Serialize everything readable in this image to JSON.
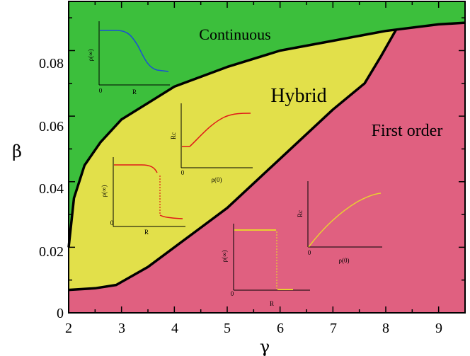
{
  "chart_data": {
    "type": "area",
    "title": "",
    "xlabel": "γ",
    "ylabel": "β",
    "xlim": [
      2,
      9.5
    ],
    "ylim": [
      0,
      0.095
    ],
    "x_ticks": [
      2,
      3,
      4,
      5,
      6,
      7,
      8,
      9
    ],
    "x_tick_labels": [
      "2",
      "3",
      "4",
      "5",
      "6",
      "7",
      "8",
      "9"
    ],
    "y_ticks": [
      0,
      0.02,
      0.04,
      0.06,
      0.08
    ],
    "y_tick_labels": [
      "0",
      "0.02",
      "0.04",
      "0.06",
      "0.08"
    ],
    "grid": false,
    "colors": {
      "continuous": "#3cbf3c",
      "hybrid": "#e2e04a",
      "first_order": "#e06080",
      "boundary": "#000000",
      "inset_blue": "#1a4fd6",
      "inset_red": "#e01818",
      "inset_yellow": "#e8d030"
    },
    "regions": [
      {
        "name": "Continuous",
        "label": "Continuous"
      },
      {
        "name": "Hybrid",
        "label": "Hybrid"
      },
      {
        "name": "First order",
        "label": "First order"
      }
    ],
    "upper_boundary": {
      "x": [
        2.0,
        2.1,
        2.3,
        2.6,
        3.0,
        3.5,
        4.0,
        5.0,
        6.0,
        7.0,
        8.0,
        9.0,
        9.5
      ],
      "y": [
        0.02,
        0.035,
        0.045,
        0.052,
        0.059,
        0.064,
        0.069,
        0.075,
        0.08,
        0.083,
        0.086,
        0.088,
        0.0885
      ]
    },
    "lower_boundary": {
      "x": [
        2.0,
        2.5,
        2.9,
        3.5,
        4.5,
        5.0,
        6.0,
        7.0,
        7.6,
        7.9,
        8.2
      ],
      "y": [
        0.007,
        0.0075,
        0.0085,
        0.014,
        0.026,
        0.032,
        0.047,
        0.062,
        0.07,
        0.078,
        0.0865
      ]
    },
    "insets": [
      {
        "name": "continuous-inset",
        "ylabel": "ρ(∞)",
        "xlabel": "R",
        "origin_label": "0",
        "transition": "continuous"
      },
      {
        "name": "hybrid-rc-inset",
        "ylabel": "Rc",
        "xlabel": "ρ(0)",
        "origin_label": "0",
        "transition": "hybrid"
      },
      {
        "name": "hybrid-rho-inset",
        "ylabel": "ρ(∞)",
        "xlabel": "R",
        "origin_label": "0",
        "transition": "hybrid"
      },
      {
        "name": "first-order-rc-inset",
        "ylabel": "Rc",
        "xlabel": "ρ(0)",
        "origin_label": "0",
        "transition": "first-order"
      },
      {
        "name": "first-order-rho-inset",
        "ylabel": "ρ(∞)",
        "xlabel": "R",
        "origin_label": "0",
        "transition": "first-order"
      }
    ]
  }
}
